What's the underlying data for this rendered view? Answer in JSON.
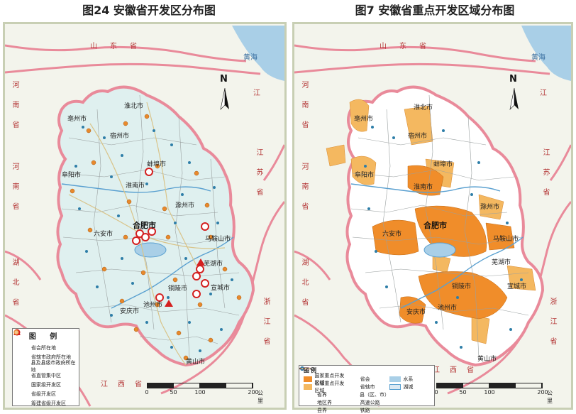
{
  "left": {
    "title": "图24 安徽省开发区分布图",
    "north": "N",
    "provinces": {
      "shandong": "山东省",
      "henan": "河南省",
      "hubei": "湖北省",
      "jiangxi": "江西省",
      "jiangsu": "江苏省",
      "zhejiang": "浙江省",
      "jiang_top": "江"
    },
    "sea": "黄海",
    "cities_major": [
      "亳州市",
      "宿州市",
      "淮北市",
      "蚌埠市",
      "阜阳市",
      "淮南市",
      "滁州市",
      "合肥市",
      "六安市",
      "马鞍山市",
      "芜湖市",
      "铜陵市",
      "池州市",
      "安庆市",
      "宣城市",
      "黄山市"
    ],
    "legend": {
      "title": "图 例",
      "items": [
        "省会所在地",
        "省辖市政府所在地",
        "县及县级市政府所在地",
        "省直管集中区",
        "国家级开发区",
        "省级开发区",
        "筹建省级开发区"
      ]
    },
    "scale": {
      "ticks": [
        "0",
        "50",
        "100",
        "200"
      ],
      "unit": "公里"
    }
  },
  "right": {
    "title": "图7 安徽省重点开发区域分布图",
    "north": "N",
    "provinces": {
      "shandong": "山东省",
      "henan": "河南省",
      "hubei": "湖北省",
      "jiangxi": "江西省",
      "jiangsu": "江苏省",
      "zhejiang": "浙江省",
      "jiang_top": "江"
    },
    "sea": "黄海",
    "cities_major": [
      "亳州市",
      "淮北市",
      "宿州市",
      "阜阳市",
      "蚌埠市",
      "淮南市",
      "滁州市",
      "合肥市",
      "六安市",
      "马鞍山市",
      "芜湖市",
      "铜陵市",
      "池州市",
      "安庆市",
      "宣城市",
      "黄山市"
    ],
    "legend": {
      "title": "图例",
      "items": [
        "国家重点开发区域",
        "省级重点开发区域",
        "省界",
        "地区界",
        "县界",
        "省会",
        "省辖市",
        "县（区、市）",
        "高速公路",
        "铁路",
        "水系",
        "湖城"
      ]
    },
    "scale": {
      "ticks": [
        "0",
        "50",
        "100",
        "200"
      ],
      "unit": "公里"
    }
  },
  "colors": {
    "province_fill": "#dff0ef",
    "national_zone": "#f08d2a",
    "provincial_zone": "#f4b860",
    "border_pink": "#e98a9a",
    "water": "#a9cfe7",
    "red_marker": "#d42020"
  }
}
